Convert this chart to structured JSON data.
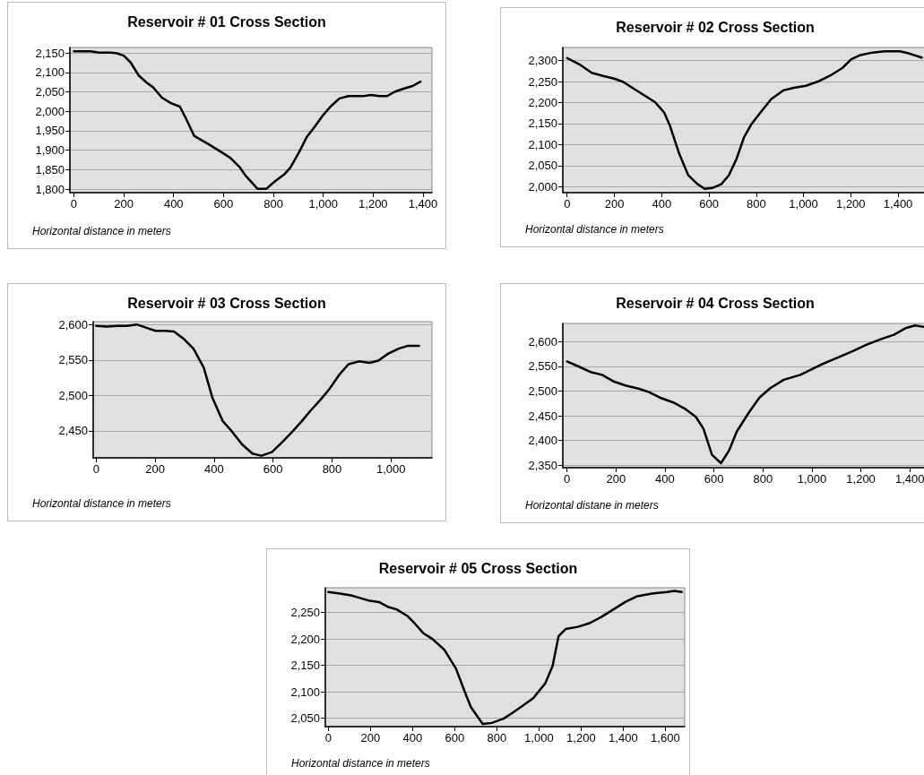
{
  "chart_data": [
    {
      "type": "line",
      "title": "Reservoir # 01 Cross Section",
      "xlabel": "Horizontal distance in meters",
      "grid": "y",
      "marker": "none",
      "line_style": "solid",
      "color": "#000000",
      "x": [
        0,
        66,
        102,
        150,
        173,
        200,
        227,
        260,
        293,
        317,
        353,
        389,
        425,
        449,
        482,
        544,
        592,
        628,
        664,
        688,
        736,
        772,
        808,
        844,
        868,
        903,
        933,
        969,
        999,
        1029,
        1065,
        1101,
        1161,
        1191,
        1226,
        1256,
        1286,
        1322,
        1358,
        1390
      ],
      "values": [
        2154,
        2154,
        2151,
        2151,
        2149,
        2143,
        2126,
        2092,
        2073,
        2062,
        2035,
        2021,
        2012,
        1982,
        1937,
        1914,
        1895,
        1880,
        1857,
        1835,
        1801,
        1801,
        1821,
        1838,
        1855,
        1895,
        1933,
        1963,
        1990,
        2012,
        2033,
        2039,
        2039,
        2042,
        2039,
        2039,
        2050,
        2058,
        2065,
        2076
      ],
      "xlim": [
        -16,
        1436
      ],
      "xticks": [
        0,
        200,
        400,
        600,
        800,
        {
          "value": 1000,
          "label": "1,000"
        },
        {
          "value": 1200,
          "label": "1,200"
        },
        {
          "value": 1400,
          "label": "1,400"
        }
      ],
      "ylim": [
        1791,
        2164
      ],
      "yticks": [
        {
          "value": 1800,
          "label": "1,800"
        },
        {
          "value": 1850,
          "label": "1,850"
        },
        {
          "value": 1900,
          "label": "1,900"
        },
        {
          "value": 1950,
          "label": "1,950"
        },
        {
          "value": 2000,
          "label": "2,000"
        },
        {
          "value": 2050,
          "label": "2,050"
        },
        {
          "value": 2100,
          "label": "2,100"
        },
        {
          "value": 2150,
          "label": "2,150"
        }
      ]
    },
    {
      "type": "line",
      "title": "Reservoir # 02 Cross Section",
      "xlabel": "Horizontal distance in meters",
      "grid": "y",
      "marker": "none",
      "line_style": "solid",
      "color": "#000000",
      "x": [
        0,
        52,
        104,
        156,
        199,
        238,
        282,
        333,
        372,
        410,
        435,
        474,
        512,
        550,
        582,
        614,
        652,
        684,
        716,
        748,
        780,
        819,
        863,
        914,
        959,
        1010,
        1061,
        1112,
        1164,
        1202,
        1241,
        1292,
        1343,
        1407,
        1445,
        1500
      ],
      "values": [
        2306,
        2291,
        2271,
        2263,
        2257,
        2249,
        2233,
        2215,
        2201,
        2177,
        2145,
        2079,
        2028,
        2007,
        1995,
        1997,
        2006,
        2027,
        2065,
        2117,
        2149,
        2177,
        2208,
        2229,
        2235,
        2240,
        2250,
        2264,
        2282,
        2303,
        2313,
        2319,
        2322,
        2322,
        2317,
        2307
      ],
      "xlim": [
        -18,
        1521
      ],
      "xticks": [
        0,
        200,
        400,
        600,
        800,
        {
          "value": 1000,
          "label": "1,000"
        },
        {
          "value": 1200,
          "label": "1,200"
        },
        {
          "value": 1400,
          "label": "1,400"
        }
      ],
      "ylim": [
        1986,
        2331
      ],
      "yticks": [
        {
          "value": 2000,
          "label": "2,000"
        },
        {
          "value": 2050,
          "label": "2,050"
        },
        {
          "value": 2100,
          "label": "2,100"
        },
        {
          "value": 2150,
          "label": "2,150"
        },
        {
          "value": 2200,
          "label": "2,200"
        },
        {
          "value": 2250,
          "label": "2,250"
        },
        {
          "value": 2300,
          "label": "2,300"
        }
      ]
    },
    {
      "type": "line",
      "title": "Reservoir # 03 Cross Section",
      "xlabel": "Horizontal distance in meters",
      "grid": "y",
      "marker": "none",
      "line_style": "solid",
      "color": "#000000",
      "x": [
        0,
        37,
        72,
        103,
        138,
        173,
        201,
        233,
        264,
        299,
        330,
        365,
        394,
        429,
        459,
        495,
        530,
        560,
        596,
        626,
        661,
        696,
        726,
        761,
        791,
        826,
        856,
        891,
        927,
        957,
        991,
        1026,
        1058,
        1095
      ],
      "values": [
        2598,
        2597,
        2598,
        2598,
        2600,
        2595,
        2591,
        2591,
        2590,
        2579,
        2566,
        2539,
        2497,
        2464,
        2450,
        2431,
        2418,
        2415,
        2420,
        2432,
        2447,
        2463,
        2478,
        2494,
        2509,
        2530,
        2544,
        2548,
        2546,
        2549,
        2559,
        2566,
        2570,
        2570
      ],
      "xlim": [
        -10,
        1139
      ],
      "xticks": [
        0,
        200,
        400,
        600,
        800,
        {
          "value": 1000,
          "label": "1,000"
        }
      ],
      "ylim": [
        2412,
        2604
      ],
      "yticks": [
        {
          "value": 2450,
          "label": "2,450"
        },
        {
          "value": 2500,
          "label": "2,500"
        },
        {
          "value": 2550,
          "label": "2,550"
        },
        {
          "value": 2600,
          "label": "2,600"
        }
      ]
    },
    {
      "type": "line",
      "title": "Reservoir # 04 Cross Section",
      "xlabel": "Horizontal distane in meters",
      "grid": "y",
      "marker": "none",
      "line_style": "solid",
      "color": "#000000",
      "x": [
        0,
        51,
        100,
        143,
        193,
        242,
        292,
        335,
        384,
        434,
        483,
        526,
        557,
        592,
        629,
        662,
        693,
        743,
        786,
        830,
        885,
        953,
        990,
        1039,
        1101,
        1163,
        1224,
        1286,
        1335,
        1385,
        1422,
        1457
      ],
      "values": [
        2560,
        2549,
        2538,
        2533,
        2519,
        2511,
        2505,
        2498,
        2486,
        2477,
        2464,
        2448,
        2424,
        2371,
        2354,
        2380,
        2418,
        2457,
        2487,
        2506,
        2523,
        2533,
        2542,
        2554,
        2567,
        2580,
        2594,
        2606,
        2614,
        2628,
        2633,
        2630
      ],
      "xlim": [
        -17,
        1465
      ],
      "xticks": [
        0,
        200,
        400,
        600,
        800,
        {
          "value": 1000,
          "label": "1,000"
        },
        {
          "value": 1200,
          "label": "1,200"
        },
        {
          "value": 1400,
          "label": "1,400"
        }
      ],
      "ylim": [
        2345,
        2637
      ],
      "yticks": [
        {
          "value": 2350,
          "label": "2,350"
        },
        {
          "value": 2400,
          "label": "2,400"
        },
        {
          "value": 2450,
          "label": "2,450"
        },
        {
          "value": 2500,
          "label": "2,500"
        },
        {
          "value": 2550,
          "label": "2,550"
        },
        {
          "value": 2600,
          "label": "2,600"
        }
      ]
    },
    {
      "type": "line",
      "title": "Reservoir # 05 Cross Section",
      "xlabel": "Horizontal distance in meters",
      "grid": "y",
      "marker": "none",
      "line_style": "solid",
      "color": "#000000",
      "x": [
        0,
        56,
        113,
        190,
        240,
        282,
        324,
        374,
        409,
        451,
        494,
        550,
        606,
        649,
        677,
        733,
        776,
        832,
        874,
        924,
        973,
        1030,
        1065,
        1093,
        1128,
        1185,
        1241,
        1298,
        1354,
        1410,
        1467,
        1537,
        1608,
        1643,
        1678
      ],
      "values": [
        2289,
        2286,
        2282,
        2273,
        2270,
        2261,
        2256,
        2244,
        2230,
        2211,
        2200,
        2180,
        2144,
        2099,
        2071,
        2039,
        2041,
        2049,
        2060,
        2074,
        2088,
        2116,
        2149,
        2205,
        2219,
        2223,
        2230,
        2242,
        2256,
        2270,
        2281,
        2286,
        2289,
        2291,
        2289
      ],
      "xlim": [
        -14,
        1692
      ],
      "xticks": [
        0,
        200,
        400,
        600,
        800,
        {
          "value": 1000,
          "label": "1,000"
        },
        {
          "value": 1200,
          "label": "1,200"
        },
        {
          "value": 1400,
          "label": "1,400"
        },
        {
          "value": 1600,
          "label": "1,600"
        }
      ],
      "ylim": [
        2034,
        2297
      ],
      "yticks": [
        {
          "value": 2050,
          "label": "2,050"
        },
        {
          "value": 2100,
          "label": "2,100"
        },
        {
          "value": 2150,
          "label": "2,150"
        },
        {
          "value": 2200,
          "label": "2,200"
        },
        {
          "value": 2250,
          "label": "2,250"
        }
      ]
    }
  ]
}
